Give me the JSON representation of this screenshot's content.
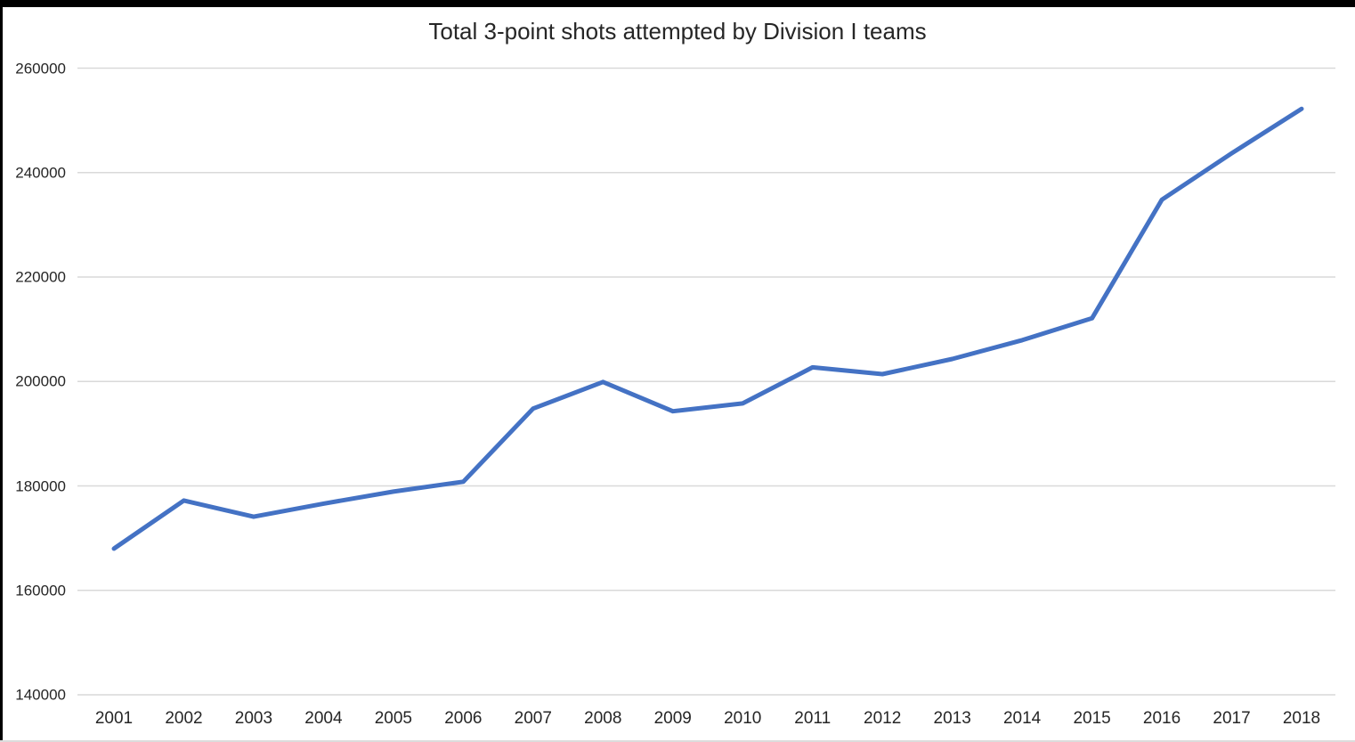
{
  "chart_data": {
    "type": "line",
    "title": "Total 3-point shots attempted by Division I teams",
    "categories": [
      "2001",
      "2002",
      "2003",
      "2004",
      "2005",
      "2006",
      "2007",
      "2008",
      "2009",
      "2010",
      "2011",
      "2012",
      "2013",
      "2014",
      "2015",
      "2016",
      "2017",
      "2018"
    ],
    "values": [
      168000,
      177200,
      174100,
      176600,
      178900,
      180800,
      194800,
      199900,
      194300,
      195800,
      202700,
      201400,
      204300,
      207900,
      212100,
      234800,
      243700,
      252200
    ],
    "xlabel": "",
    "ylabel": "",
    "ylim": [
      140000,
      260000
    ],
    "ytick_step": 20000,
    "y_tick_labels": [
      "140000",
      "160000",
      "180000",
      "200000",
      "220000",
      "240000",
      "260000"
    ],
    "grid": "horizontal gridlines only",
    "legend": "none",
    "colors": {
      "line": "#4472C4",
      "gridline": "#D9D9D9",
      "text": "#262626",
      "background": "#FFFFFF",
      "window_edge": "#000000"
    }
  }
}
